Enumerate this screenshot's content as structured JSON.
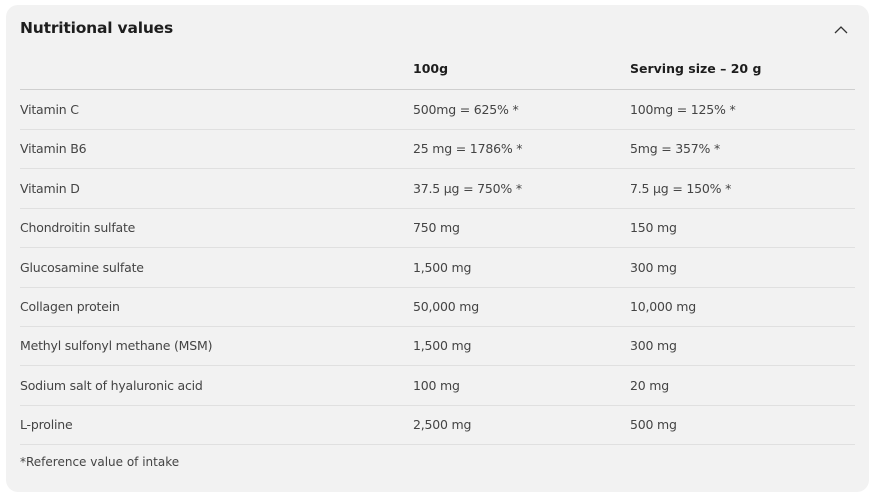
{
  "title": "Nutritional values",
  "collapse_icon": "chevron-up-icon",
  "columns": [
    "",
    "100g",
    "Serving size – 20 g"
  ],
  "rows": [
    [
      "Vitamin C",
      "500mg = 625% *",
      "100mg = 125% *"
    ],
    [
      "Vitamin B6",
      "25 mg = 1786% *",
      "5mg = 357% *"
    ],
    [
      "Vitamin D",
      "37.5 µg = 750% *",
      "7.5 µg = 150% *"
    ],
    [
      "Chondroitin sulfate",
      "750 mg",
      "150 mg"
    ],
    [
      "Glucosamine sulfate",
      "1,500 mg",
      "300 mg"
    ],
    [
      "Collagen protein",
      "50,000 mg",
      "10,000 mg"
    ],
    [
      "Methyl sulfonyl methane (MSM)",
      "1,500 mg",
      "300 mg"
    ],
    [
      "Sodium salt of hyaluronic acid",
      "100 mg",
      "20 mg"
    ],
    [
      "L-proline",
      "2,500 mg",
      "500 mg"
    ]
  ],
  "footnote": "*Reference value of intake"
}
